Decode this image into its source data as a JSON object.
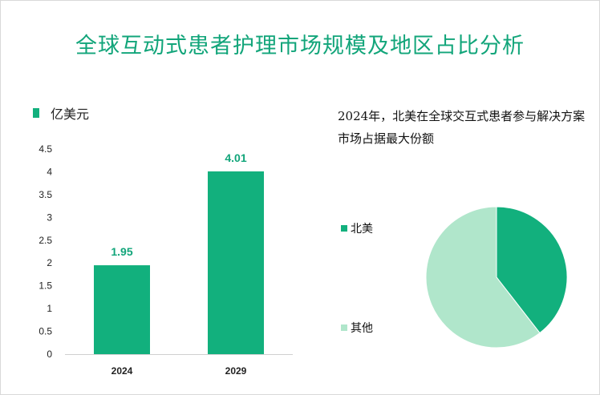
{
  "title": "全球互动式患者护理市场规模及地区占比分析",
  "colors": {
    "accent": "#12a57a",
    "bar": "#12b07d",
    "pie_main": "#12b07d",
    "pie_other": "#b0e6cb"
  },
  "chart_data": [
    {
      "type": "bar",
      "series": [
        {
          "name": "亿美元",
          "values": [
            1.95,
            4.01
          ]
        }
      ],
      "categories": [
        "2024",
        "2029"
      ],
      "values": [
        1.95,
        4.01
      ],
      "data_labels": [
        "1.95",
        "4.01"
      ],
      "y_ticks": [
        "0",
        "0.5",
        "1",
        "1.5",
        "2",
        "2.5",
        "3",
        "3.5",
        "4",
        "4.5"
      ],
      "ylim": [
        0,
        4.5
      ],
      "grid": false
    },
    {
      "type": "pie",
      "title": "2024年，北美在全球交互式患者参与解决方案市场占据最大份额",
      "labels": [
        "北美",
        "其他"
      ],
      "values": [
        39.5,
        60.5
      ]
    }
  ]
}
